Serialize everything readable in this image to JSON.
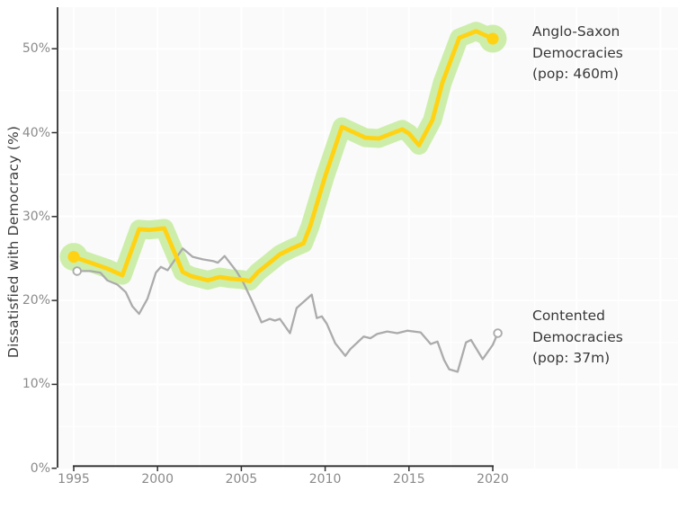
{
  "figure": {
    "background": "#ffffff",
    "panel_background": "#fafafa",
    "grid_color": "#ffffff",
    "axis_line_color": "#2f2f2f",
    "tick_label_color": "#8a8a8a",
    "text_color": "#383838"
  },
  "chart_data": {
    "type": "line",
    "title": "",
    "xlabel": "",
    "ylabel": "Dissatisfied with Democracy (%)",
    "grid": true,
    "legend_position": "right-side annotations",
    "axes": {
      "xlim": [
        1994,
        2031
      ],
      "ylim": [
        0,
        55
      ],
      "x_ticks": [
        1995,
        2000,
        2005,
        2010,
        2015,
        2020
      ],
      "x_tick_labels": [
        "1995",
        "2000",
        "2005",
        "2010",
        "2015",
        "2020"
      ],
      "y_ticks": [
        0,
        10,
        20,
        30,
        40,
        50
      ],
      "y_tick_labels": [
        "0%",
        "10%",
        "20%",
        "30%",
        "40%",
        "50%"
      ],
      "x_minor_step": 2.5,
      "y_minor_step": 5
    },
    "series": [
      {
        "id": "anglo_saxon",
        "name": "Anglo-Saxon Democracies (pop: 460m)",
        "annotation_lines": [
          "Anglo-Saxon",
          "Democracies",
          "(pop: 460m)"
        ],
        "line_color": "#ffd314",
        "halo_color": "#cdeeab",
        "line_width": 4.8,
        "halo_width": 21,
        "endpoint_style": "filled-dot",
        "points": [
          [
            1995.0,
            25.2
          ],
          [
            1996.0,
            24.5
          ],
          [
            1997.0,
            23.8
          ],
          [
            1997.9,
            23.0
          ],
          [
            1998.9,
            28.5
          ],
          [
            1999.5,
            28.4
          ],
          [
            2000.4,
            28.6
          ],
          [
            2001.5,
            23.4
          ],
          [
            2002.0,
            22.9
          ],
          [
            2002.6,
            22.6
          ],
          [
            2003.0,
            22.4
          ],
          [
            2003.7,
            22.8
          ],
          [
            2004.3,
            22.6
          ],
          [
            2005.0,
            22.5
          ],
          [
            2005.5,
            22.3
          ],
          [
            2006.0,
            23.4
          ],
          [
            2006.5,
            24.2
          ],
          [
            2007.3,
            25.5
          ],
          [
            2008.0,
            26.2
          ],
          [
            2008.7,
            26.8
          ],
          [
            2009.1,
            28.8
          ],
          [
            2010.0,
            34.8
          ],
          [
            2011.0,
            40.7
          ],
          [
            2012.4,
            39.4
          ],
          [
            2013.2,
            39.3
          ],
          [
            2014.6,
            40.4
          ],
          [
            2015.0,
            39.9
          ],
          [
            2015.6,
            38.5
          ],
          [
            2016.4,
            41.5
          ],
          [
            2017.0,
            46.0
          ],
          [
            2018.0,
            51.3
          ],
          [
            2019.0,
            52.1
          ],
          [
            2020.0,
            51.2
          ]
        ]
      },
      {
        "id": "contented",
        "name": "Contented Democracies (pop: 37m)",
        "annotation_lines": [
          "Contented",
          "Democracies",
          "(pop: 37m)"
        ],
        "line_color": "#ababab",
        "line_width": 2.3,
        "endpoint_style": "open-dot",
        "points": [
          [
            1995.2,
            23.5
          ],
          [
            1996.0,
            23.5
          ],
          [
            1996.6,
            23.3
          ],
          [
            1997.0,
            22.4
          ],
          [
            1997.6,
            21.9
          ],
          [
            1998.1,
            21.0
          ],
          [
            1998.5,
            19.3
          ],
          [
            1998.9,
            18.4
          ],
          [
            1999.4,
            20.2
          ],
          [
            1999.9,
            23.3
          ],
          [
            2000.2,
            24.0
          ],
          [
            2000.6,
            23.6
          ],
          [
            2001.5,
            26.2
          ],
          [
            2002.1,
            25.2
          ],
          [
            2002.7,
            24.9
          ],
          [
            2003.3,
            24.7
          ],
          [
            2003.6,
            24.5
          ],
          [
            2004.0,
            25.3
          ],
          [
            2004.7,
            23.5
          ],
          [
            2005.1,
            22.2
          ],
          [
            2005.6,
            20.1
          ],
          [
            2006.2,
            17.4
          ],
          [
            2006.7,
            17.8
          ],
          [
            2007.0,
            17.6
          ],
          [
            2007.3,
            17.8
          ],
          [
            2007.9,
            16.1
          ],
          [
            2008.3,
            19.1
          ],
          [
            2009.2,
            20.7
          ],
          [
            2009.5,
            17.9
          ],
          [
            2009.8,
            18.1
          ],
          [
            2010.1,
            17.2
          ],
          [
            2010.6,
            14.9
          ],
          [
            2011.2,
            13.4
          ],
          [
            2011.5,
            14.2
          ],
          [
            2012.3,
            15.7
          ],
          [
            2012.7,
            15.5
          ],
          [
            2013.1,
            16.0
          ],
          [
            2013.7,
            16.3
          ],
          [
            2014.3,
            16.1
          ],
          [
            2014.9,
            16.4
          ],
          [
            2015.7,
            16.2
          ],
          [
            2016.3,
            14.8
          ],
          [
            2016.7,
            15.1
          ],
          [
            2017.1,
            12.9
          ],
          [
            2017.4,
            11.8
          ],
          [
            2017.9,
            11.5
          ],
          [
            2018.4,
            15.0
          ],
          [
            2018.7,
            15.3
          ],
          [
            2019.1,
            14.0
          ],
          [
            2019.4,
            13.0
          ],
          [
            2020.0,
            14.7
          ],
          [
            2020.3,
            16.1
          ]
        ]
      }
    ]
  }
}
